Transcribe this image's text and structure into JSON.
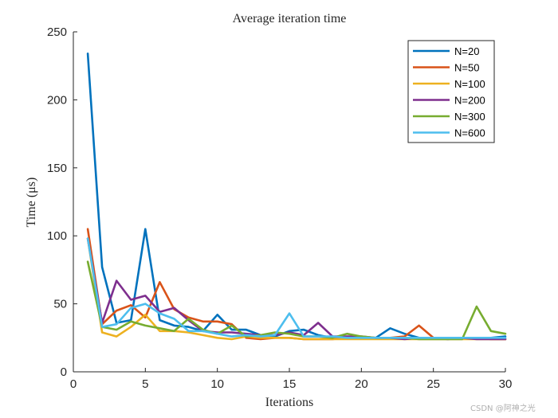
{
  "chart_data": {
    "type": "line",
    "title": "Average iteration time",
    "xlabel": "Iterations",
    "ylabel": "Time (μs)",
    "xlim": [
      0,
      30
    ],
    "ylim": [
      0,
      250
    ],
    "xticks": [
      0,
      5,
      10,
      15,
      20,
      25,
      30
    ],
    "yticks": [
      0,
      50,
      100,
      150,
      200,
      250
    ],
    "grid": false,
    "legend_position": "top-right",
    "x": [
      1,
      2,
      3,
      4,
      5,
      6,
      7,
      8,
      9,
      10,
      11,
      12,
      13,
      14,
      15,
      16,
      17,
      18,
      19,
      20,
      21,
      22,
      23,
      24,
      25,
      26,
      27,
      28,
      29,
      30
    ],
    "series": [
      {
        "name": "N=20",
        "color": "#0072BD",
        "values": [
          234,
          77,
          36,
          38,
          105,
          38,
          34,
          33,
          30,
          42,
          31,
          31,
          27,
          26,
          30,
          31,
          27,
          25,
          25,
          25,
          25,
          32,
          28,
          25,
          25,
          25,
          25,
          25,
          25,
          26
        ]
      },
      {
        "name": "N=50",
        "color": "#D95319",
        "values": [
          105,
          35,
          45,
          49,
          40,
          66,
          46,
          40,
          37,
          37,
          35,
          25,
          24,
          25,
          25,
          24,
          24,
          24,
          25,
          25,
          25,
          25,
          26,
          34,
          25,
          25,
          25,
          25,
          24,
          24
        ]
      },
      {
        "name": "N=100",
        "color": "#EDB120",
        "values": [
          98,
          29,
          26,
          33,
          42,
          30,
          30,
          29,
          27,
          25,
          24,
          26,
          25,
          25,
          25,
          24,
          24,
          24,
          24,
          24,
          24,
          24,
          24,
          24,
          24,
          24,
          24,
          24,
          24,
          24
        ]
      },
      {
        "name": "N=200",
        "color": "#7E2F8E",
        "values": [
          98,
          36,
          67,
          53,
          56,
          44,
          47,
          38,
          30,
          29,
          29,
          28,
          27,
          27,
          29,
          27,
          36,
          26,
          26,
          26,
          25,
          25,
          24,
          25,
          25,
          24,
          25,
          24,
          24,
          24
        ]
      },
      {
        "name": "N=300",
        "color": "#77AC30",
        "values": [
          81,
          33,
          31,
          37,
          34,
          32,
          30,
          39,
          31,
          28,
          34,
          26,
          27,
          29,
          28,
          26,
          26,
          25,
          28,
          26,
          25,
          25,
          25,
          24,
          24,
          24,
          24,
          48,
          30,
          28
        ]
      },
      {
        "name": "N=600",
        "color": "#4DBEEE",
        "values": [
          98,
          33,
          35,
          47,
          50,
          43,
          39,
          30,
          30,
          28,
          26,
          27,
          26,
          27,
          43,
          26,
          26,
          26,
          25,
          25,
          25,
          25,
          25,
          25,
          25,
          25,
          25,
          25,
          25,
          25
        ]
      }
    ]
  },
  "watermark": "CSDN @阿神之光"
}
